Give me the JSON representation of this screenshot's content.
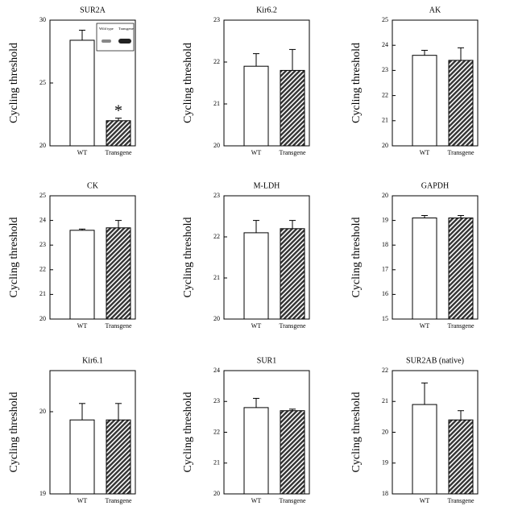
{
  "chart_data": [
    {
      "type": "bar",
      "title": "SUR2A",
      "y_label": "Cycling threshold",
      "categories": [
        "WT",
        "Transgene"
      ],
      "values": [
        28.4,
        22.0
      ],
      "errors": [
        0.8,
        0.2
      ],
      "ylim": [
        20,
        30
      ],
      "yticks": [
        20,
        25,
        30
      ],
      "fills": [
        "#ffffff",
        "#333333"
      ],
      "hatch": [
        false,
        true
      ],
      "annotation": "*",
      "inset_labels": [
        "Wild type",
        "Transgene"
      ]
    },
    {
      "type": "bar",
      "title": "Kir6.2",
      "y_label": "Cycling threshold",
      "categories": [
        "WT",
        "Transgene"
      ],
      "values": [
        21.9,
        21.8
      ],
      "errors": [
        0.3,
        0.5
      ],
      "ylim": [
        20,
        23
      ],
      "yticks": [
        20,
        21,
        22,
        23
      ],
      "fills": [
        "#ffffff",
        "#333333"
      ],
      "hatch": [
        false,
        true
      ]
    },
    {
      "type": "bar",
      "title": "AK",
      "y_label": "Cycling threshold",
      "categories": [
        "WT",
        "Transgene"
      ],
      "values": [
        23.6,
        23.4
      ],
      "errors": [
        0.2,
        0.5
      ],
      "ylim": [
        20,
        25
      ],
      "yticks": [
        20,
        21,
        22,
        23,
        24,
        25
      ],
      "fills": [
        "#ffffff",
        "#333333"
      ],
      "hatch": [
        false,
        true
      ]
    },
    {
      "type": "bar",
      "title": "CK",
      "y_label": "Cycling threshold",
      "categories": [
        "WT",
        "Transgene"
      ],
      "values": [
        23.6,
        23.7
      ],
      "errors": [
        0.05,
        0.3
      ],
      "ylim": [
        20,
        25
      ],
      "yticks": [
        20,
        21,
        22,
        23,
        24,
        25
      ],
      "fills": [
        "#ffffff",
        "#333333"
      ],
      "hatch": [
        false,
        true
      ]
    },
    {
      "type": "bar",
      "title": "M-LDH",
      "y_label": "Cycling threshold",
      "categories": [
        "WT",
        "Transgene"
      ],
      "values": [
        22.1,
        22.2
      ],
      "errors": [
        0.3,
        0.2
      ],
      "ylim": [
        20,
        23
      ],
      "yticks": [
        20,
        21,
        22,
        23
      ],
      "fills": [
        "#ffffff",
        "#333333"
      ],
      "hatch": [
        false,
        true
      ]
    },
    {
      "type": "bar",
      "title": "GAPDH",
      "y_label": "Cycling threshold",
      "categories": [
        "WT",
        "Transgene"
      ],
      "values": [
        19.1,
        19.1
      ],
      "errors": [
        0.1,
        0.1
      ],
      "ylim": [
        15,
        20
      ],
      "yticks": [
        15,
        16,
        17,
        18,
        19,
        20
      ],
      "fills": [
        "#ffffff",
        "#333333"
      ],
      "hatch": [
        false,
        true
      ]
    },
    {
      "type": "bar",
      "title": "Kir6.1",
      "y_label": "Cycling threshold",
      "categories": [
        "WT",
        "Transgene"
      ],
      "values": [
        19.9,
        19.9
      ],
      "errors": [
        0.2,
        0.2
      ],
      "ylim": [
        19,
        20.5
      ],
      "yticks": [
        19,
        20
      ],
      "fills": [
        "#ffffff",
        "#333333"
      ],
      "hatch": [
        false,
        true
      ]
    },
    {
      "type": "bar",
      "title": "SUR1",
      "y_label": "Cycling threshold",
      "categories": [
        "WT",
        "Transgene"
      ],
      "values": [
        22.8,
        22.7
      ],
      "errors": [
        0.3,
        0.05
      ],
      "ylim": [
        20,
        24
      ],
      "yticks": [
        20,
        21,
        22,
        23,
        24
      ],
      "fills": [
        "#ffffff",
        "#333333"
      ],
      "hatch": [
        false,
        true
      ]
    },
    {
      "type": "bar",
      "title": "SUR2AB (native)",
      "y_label": "Cycling threshold",
      "categories": [
        "WT",
        "Transgene"
      ],
      "values": [
        20.9,
        20.4
      ],
      "errors": [
        0.7,
        0.3
      ],
      "ylim": [
        18,
        22
      ],
      "yticks": [
        18,
        19,
        20,
        21,
        22
      ],
      "fills": [
        "#ffffff",
        "#333333"
      ],
      "hatch": [
        false,
        true
      ]
    }
  ]
}
